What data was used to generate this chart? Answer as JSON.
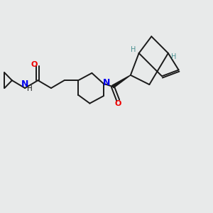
{
  "bg_color": "#e8eaea",
  "bond_color": "#1a1a1a",
  "nitrogen_color": "#0000ee",
  "oxygen_color": "#ee0000",
  "stereo_h_color": "#4a9090",
  "text_color": "#1a1a1a",
  "figsize": [
    3.0,
    3.0
  ],
  "dpi": 100,
  "xlim": [
    0,
    10
  ],
  "ylim": [
    0,
    10
  ]
}
